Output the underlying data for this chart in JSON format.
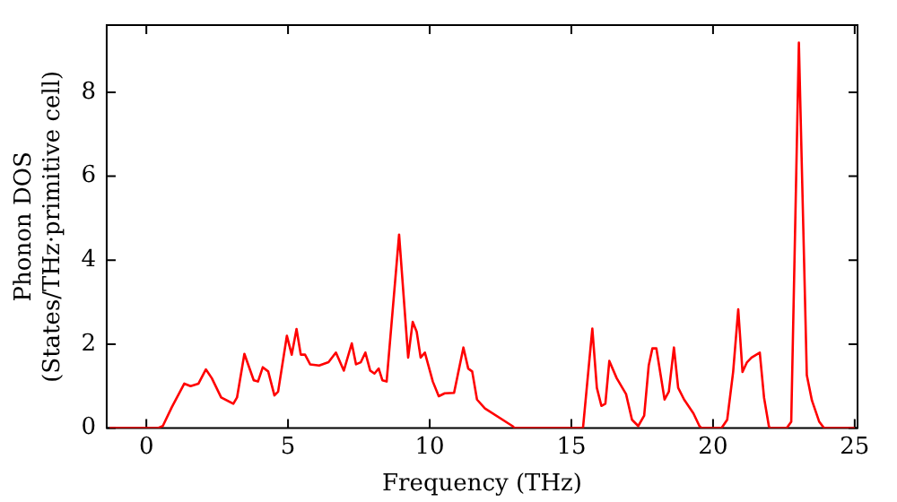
{
  "chart_data": {
    "type": "line",
    "xlabel": "Frequency (THz)",
    "ylabel": "Phonon DOS\n(States/THz·primitive cell)",
    "xlim": [
      -1.4,
      25.1
    ],
    "ylim": [
      0,
      9.6
    ],
    "xticks": [
      0,
      5,
      10,
      15,
      20,
      25
    ],
    "yticks": [
      0,
      2,
      4,
      6,
      8
    ],
    "grid": false,
    "legend": false,
    "marker": "none",
    "line_style": "solid",
    "series": [
      {
        "color": "#ff0000",
        "x": [
          -1.3,
          0.4,
          0.58,
          0.9,
          1.34,
          1.56,
          1.84,
          2.1,
          2.31,
          2.64,
          3.07,
          3.2,
          3.46,
          3.79,
          3.94,
          4.11,
          4.3,
          4.52,
          4.65,
          4.96,
          5.13,
          5.3,
          5.45,
          5.6,
          5.78,
          6.1,
          6.43,
          6.69,
          6.97,
          7.25,
          7.4,
          7.57,
          7.73,
          7.9,
          8.05,
          8.2,
          8.33,
          8.48,
          8.92,
          9.24,
          9.4,
          9.54,
          9.68,
          9.83,
          10.11,
          10.32,
          10.53,
          10.86,
          11.19,
          11.36,
          11.5,
          11.67,
          11.95,
          12.92,
          13.0,
          15.41,
          15.74,
          15.9,
          16.06,
          16.2,
          16.34,
          16.6,
          16.93,
          17.14,
          17.36,
          17.57,
          17.73,
          17.86,
          18.0,
          18.29,
          18.44,
          18.62,
          18.77,
          18.98,
          19.31,
          19.52,
          19.6,
          20.3,
          20.5,
          20.71,
          20.89,
          21.04,
          21.2,
          21.36,
          21.65,
          21.8,
          21.97,
          22.0,
          22.6,
          22.76,
          23.03,
          23.31,
          23.49,
          23.75,
          23.92,
          25.0
        ],
        "values": [
          0,
          0,
          0.05,
          0.5,
          1.06,
          1.0,
          1.06,
          1.4,
          1.19,
          0.73,
          0.58,
          0.73,
          1.77,
          1.14,
          1.11,
          1.45,
          1.35,
          0.78,
          0.87,
          2.2,
          1.75,
          2.36,
          1.75,
          1.75,
          1.52,
          1.49,
          1.57,
          1.8,
          1.37,
          2.02,
          1.52,
          1.57,
          1.8,
          1.37,
          1.3,
          1.42,
          1.14,
          1.11,
          4.61,
          1.68,
          2.53,
          2.3,
          1.68,
          1.8,
          1.11,
          0.76,
          0.83,
          0.84,
          1.92,
          1.42,
          1.35,
          0.68,
          0.47,
          0.05,
          0,
          0,
          2.37,
          0.96,
          0.53,
          0.58,
          1.6,
          1.19,
          0.81,
          0.2,
          0.05,
          0.3,
          1.49,
          1.9,
          1.9,
          0.68,
          0.87,
          1.92,
          0.96,
          0.68,
          0.35,
          0.05,
          0,
          0,
          0.2,
          1.34,
          2.83,
          1.34,
          1.57,
          1.68,
          1.8,
          0.73,
          0.05,
          0,
          0,
          0.15,
          9.18,
          1.26,
          0.66,
          0.15,
          0,
          0
        ]
      }
    ]
  }
}
